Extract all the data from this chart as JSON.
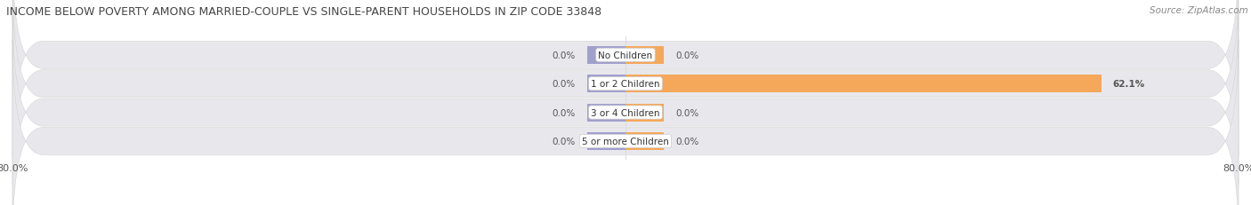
{
  "title": "INCOME BELOW POVERTY AMONG MARRIED-COUPLE VS SINGLE-PARENT HOUSEHOLDS IN ZIP CODE 33848",
  "source": "Source: ZipAtlas.com",
  "categories": [
    "No Children",
    "1 or 2 Children",
    "3 or 4 Children",
    "5 or more Children"
  ],
  "married_values": [
    0.0,
    0.0,
    0.0,
    0.0
  ],
  "single_values": [
    0.0,
    62.1,
    0.0,
    0.0
  ],
  "axis_min": -80.0,
  "axis_max": 80.0,
  "married_color": "#a0a0cc",
  "single_color": "#f5a85a",
  "single_color_light": "#f5c99a",
  "married_color_light": "#b8b8dd",
  "bar_height": 0.62,
  "row_bg_color": "#e8e8ec",
  "title_fontsize": 9.0,
  "label_fontsize": 7.5,
  "tick_fontsize": 8.0,
  "legend_fontsize": 8.0,
  "source_fontsize": 7.5,
  "zero_bar_width": 5.0
}
